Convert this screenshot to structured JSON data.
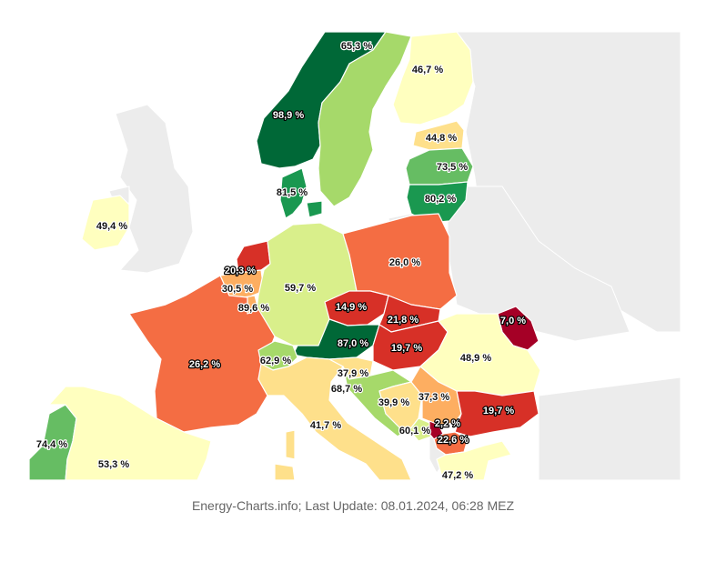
{
  "footer": {
    "credit": "Energy-Charts.info; Last Update: 08.01.2024, 06:28 MEZ"
  },
  "map": {
    "countries": [
      {
        "id": "norway",
        "value": 98.9,
        "label": "98,9 %",
        "color": "#006837",
        "dark": true
      },
      {
        "id": "sweden",
        "value": 65.3,
        "label": "65,3 %",
        "color": "#a6d96a"
      },
      {
        "id": "finland",
        "value": 46.7,
        "label": "46,7 %",
        "color": "#ffffbf"
      },
      {
        "id": "estonia",
        "value": 44.8,
        "label": "44,8 %",
        "color": "#fee08b"
      },
      {
        "id": "latvia",
        "value": 73.5,
        "label": "73,5 %",
        "color": "#66bd63"
      },
      {
        "id": "lithuania",
        "value": 80.2,
        "label": "80,2 %",
        "color": "#1a9850"
      },
      {
        "id": "denmark",
        "value": 81.5,
        "label": "81,5 %",
        "color": "#1a9850"
      },
      {
        "id": "ireland",
        "value": 49.4,
        "label": "49,4 %",
        "color": "#ffffbf"
      },
      {
        "id": "netherlands",
        "value": 20.3,
        "label": "20,3 %",
        "color": "#d73027",
        "dark": true
      },
      {
        "id": "belgium",
        "value": 30.5,
        "label": "30,5 %",
        "color": "#fdae61"
      },
      {
        "id": "luxembourg",
        "value": 89.6,
        "label": "89,6 %",
        "color": "#fdae61"
      },
      {
        "id": "germany",
        "value": 59.7,
        "label": "59,7 %",
        "color": "#d9ef8b"
      },
      {
        "id": "poland",
        "value": 26.0,
        "label": "26,0 %",
        "color": "#f46d43"
      },
      {
        "id": "czechia",
        "value": 14.9,
        "label": "14,9 %",
        "color": "#d73027",
        "dark": true
      },
      {
        "id": "slovakia",
        "value": 21.8,
        "label": "21,8 %",
        "color": "#d73027",
        "dark": true
      },
      {
        "id": "moldova",
        "value": 7.0,
        "label": "7,0 %",
        "color": "#a50026",
        "dark": true
      },
      {
        "id": "austria",
        "value": 87.0,
        "label": "87,0 %",
        "color": "#006837",
        "dark": true
      },
      {
        "id": "hungary",
        "value": 19.7,
        "label": "19,7 %",
        "color": "#d73027",
        "dark": true
      },
      {
        "id": "romania",
        "value": 48.9,
        "label": "48,9 %",
        "color": "#ffffbf"
      },
      {
        "id": "france",
        "value": 26.2,
        "label": "26,2 %",
        "color": "#f46d43",
        "dark": true
      },
      {
        "id": "switzerland",
        "value": 62.9,
        "label": "62,9 %",
        "color": "#a6d96a"
      },
      {
        "id": "slovenia",
        "value": 37.9,
        "label": "37,9 %",
        "color": "#fee08b"
      },
      {
        "id": "croatia",
        "value": 68.7,
        "label": "68,7 %",
        "color": "#a6d96a"
      },
      {
        "id": "bosnia",
        "value": 39.9,
        "label": "39,9 %",
        "color": "#fee08b"
      },
      {
        "id": "serbia",
        "value": 37.3,
        "label": "37,3 %",
        "color": "#fdae61"
      },
      {
        "id": "bulgaria",
        "value": 19.7,
        "label": "19,7 %",
        "color": "#d73027",
        "dark": true
      },
      {
        "id": "kosovo",
        "value": 2.2,
        "label": "2,2 %",
        "color": "#a50026",
        "dark": true
      },
      {
        "id": "montenegro",
        "value": 60.1,
        "label": "60,1 %",
        "color": "#d9ef8b"
      },
      {
        "id": "north-macedonia",
        "value": 22.6,
        "label": "22,6 %",
        "color": "#f46d43",
        "dark": true
      },
      {
        "id": "greece",
        "value": 47.2,
        "label": "47,2 %",
        "color": "#ffffbf"
      },
      {
        "id": "italy",
        "value": 41.7,
        "label": "41,7 %",
        "color": "#fee08b"
      },
      {
        "id": "portugal",
        "value": 74.4,
        "label": "74,4 %",
        "color": "#66bd63"
      },
      {
        "id": "spain",
        "value": 53.3,
        "label": "53,3 %",
        "color": "#ffffbf"
      }
    ]
  }
}
